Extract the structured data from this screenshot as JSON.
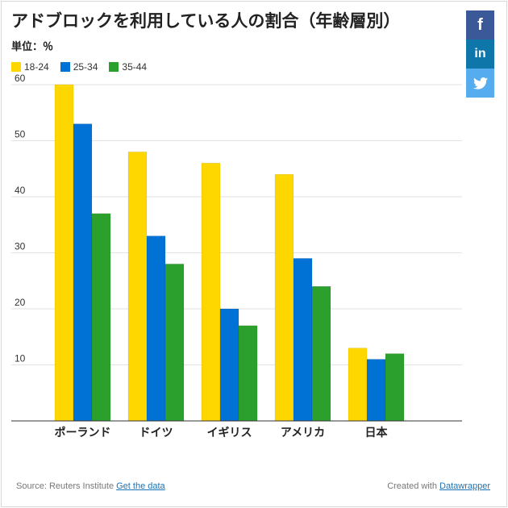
{
  "title": "アドブロックを利用している人の割合（年齢層別）",
  "unit_label": "単位：％",
  "colors": {
    "s1": "#ffd700",
    "s2": "#0072d6",
    "s3": "#2ca02c"
  },
  "share": {
    "facebook_icon": "facebook-icon",
    "linkedin_icon": "linkedin-icon",
    "twitter_icon": "twitter-icon",
    "facebook": "f",
    "linkedin": "in"
  },
  "footer": {
    "source_prefix": "Source: Reuters Institute",
    "get_data": "Get the data",
    "created_prefix": "Created with",
    "datawrapper": "Datawrapper"
  },
  "chart_data": {
    "type": "bar",
    "title": "アドブロックを利用している人の割合（年齢層別）",
    "subtitle": "単位：％",
    "categories": [
      "ポーランド",
      "ドイツ",
      "イギリス",
      "アメリカ",
      "日本"
    ],
    "series": [
      {
        "name": "18-24",
        "values": [
          60,
          48,
          46,
          44,
          13
        ]
      },
      {
        "name": "25-34",
        "values": [
          53,
          33,
          20,
          29,
          11
        ]
      },
      {
        "name": "35-44",
        "values": [
          37,
          28,
          17,
          24,
          12
        ]
      }
    ],
    "ylim": [
      0,
      60
    ],
    "yticks": [
      10,
      20,
      30,
      40,
      50,
      60
    ],
    "xlabel": "",
    "ylabel": "",
    "grid": true,
    "legend": "top-left"
  }
}
